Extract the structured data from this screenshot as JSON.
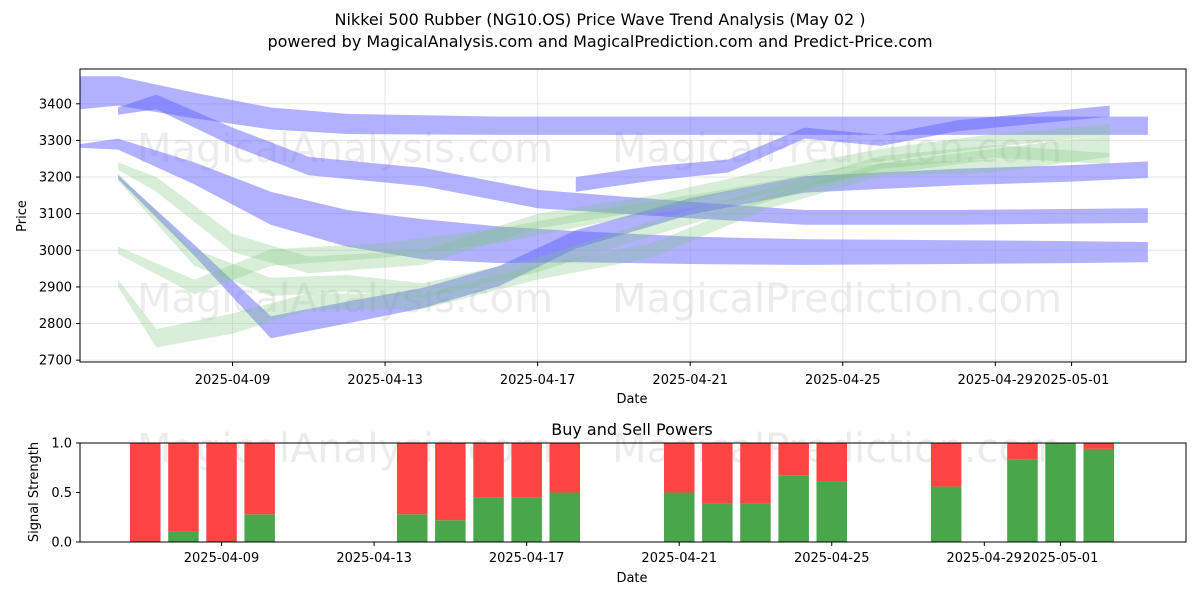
{
  "header": {
    "title": "Nikkei 500 Rubber (NG10.OS) Price Wave Trend Analysis (May 02 )",
    "subtitle": "powered by MagicalAnalysis.com and MagicalPrediction.com and Predict-Price.com"
  },
  "watermarks": [
    "MagicalAnalysis.com",
    "MagicalPrediction.com"
  ],
  "colors": {
    "blue_band": "#6464ff",
    "green_band": "#7dc87d",
    "sell": "#ff4444",
    "buy": "#4aa64a"
  },
  "chart_data": [
    {
      "type": "area",
      "title": "",
      "xlabel": "Date",
      "ylabel": "Price",
      "xlim": [
        "2025-04-05",
        "2025-05-04"
      ],
      "ylim": [
        2695,
        3495
      ],
      "x_ticks": [
        "2025-04-09",
        "2025-04-13",
        "2025-04-17",
        "2025-04-21",
        "2025-04-25",
        "2025-04-29",
        "2025-05-01"
      ],
      "y_ticks": [
        2700,
        2800,
        2900,
        3000,
        3100,
        3200,
        3300,
        3400
      ],
      "grid": true,
      "series": [
        {
          "group": "blue",
          "x": [
            "2025-04-05",
            "2025-04-06",
            "2025-04-08",
            "2025-04-10",
            "2025-04-12",
            "2025-04-16",
            "2025-04-20",
            "2025-04-24",
            "2025-04-28",
            "2025-05-03"
          ],
          "center": [
            3430,
            3435,
            3395,
            3360,
            3345,
            3340,
            3340,
            3340,
            3340,
            3340
          ],
          "width": [
            90,
            80,
            70,
            60,
            55,
            50,
            50,
            50,
            50,
            50
          ]
        },
        {
          "group": "blue",
          "x": [
            "2025-04-05",
            "2025-04-06",
            "2025-04-08",
            "2025-04-10",
            "2025-04-12",
            "2025-04-14",
            "2025-04-16",
            "2025-04-18",
            "2025-04-21",
            "2025-04-24",
            "2025-04-28",
            "2025-05-01",
            "2025-05-03"
          ],
          "center": [
            3285,
            3290,
            3210,
            3115,
            3060,
            3030,
            3015,
            3010,
            3000,
            2995,
            2995,
            2995,
            2995
          ],
          "width": [
            10,
            30,
            60,
            90,
            100,
            110,
            100,
            85,
            75,
            70,
            65,
            60,
            55
          ]
        },
        {
          "group": "blue",
          "x": [
            "2025-04-06",
            "2025-04-07",
            "2025-04-09",
            "2025-04-11",
            "2025-04-14",
            "2025-04-17",
            "2025-04-21",
            "2025-04-24",
            "2025-04-28",
            "2025-05-03"
          ],
          "center": [
            3380,
            3405,
            3310,
            3230,
            3200,
            3140,
            3110,
            3090,
            3090,
            3095
          ],
          "width": [
            20,
            40,
            50,
            50,
            50,
            50,
            45,
            40,
            40,
            40
          ]
        },
        {
          "group": "blue",
          "x": [
            "2025-04-06",
            "2025-04-08",
            "2025-04-10",
            "2025-04-12",
            "2025-04-14",
            "2025-04-16",
            "2025-04-18",
            "2025-04-21",
            "2025-04-24",
            "2025-04-28",
            "2025-05-01",
            "2025-05-03"
          ],
          "center": [
            3200,
            3000,
            2790,
            2830,
            2870,
            2930,
            3030,
            3120,
            3180,
            3200,
            3210,
            3220
          ],
          "width": [
            10,
            30,
            60,
            60,
            55,
            55,
            50,
            45,
            45,
            45,
            45,
            45
          ]
        },
        {
          "group": "blue",
          "x": [
            "2025-04-18",
            "2025-04-20",
            "2025-04-22",
            "2025-04-24",
            "2025-04-26",
            "2025-04-28",
            "2025-04-30",
            "2025-05-02"
          ],
          "center": [
            3180,
            3210,
            3230,
            3320,
            3300,
            3340,
            3360,
            3380
          ],
          "width": [
            40,
            40,
            35,
            30,
            30,
            30,
            30,
            30
          ]
        },
        {
          "group": "green",
          "x": [
            "2025-04-06",
            "2025-04-07",
            "2025-04-09",
            "2025-04-11",
            "2025-04-14",
            "2025-04-17",
            "2025-04-20",
            "2025-04-23",
            "2025-04-26",
            "2025-04-29",
            "2025-05-02"
          ],
          "center": [
            3230,
            3180,
            3020,
            2960,
            2980,
            3080,
            3130,
            3200,
            3260,
            3300,
            3330
          ],
          "width": [
            20,
            40,
            50,
            45,
            40,
            40,
            40,
            35,
            35,
            35,
            30
          ]
        },
        {
          "group": "green",
          "x": [
            "2025-04-06",
            "2025-04-08",
            "2025-04-10",
            "2025-04-12",
            "2025-04-14",
            "2025-04-17",
            "2025-04-20",
            "2025-04-23",
            "2025-04-26",
            "2025-04-29",
            "2025-05-02"
          ],
          "center": [
            3200,
            2980,
            2900,
            2910,
            2890,
            2960,
            3060,
            3150,
            3240,
            3270,
            3250
          ],
          "width": [
            20,
            45,
            50,
            45,
            40,
            40,
            40,
            35,
            35,
            35,
            30
          ]
        },
        {
          "group": "green",
          "x": [
            "2025-04-06",
            "2025-04-07",
            "2025-04-09",
            "2025-04-11",
            "2025-04-14",
            "2025-04-17",
            "2025-04-20",
            "2025-04-23",
            "2025-04-26",
            "2025-04-29",
            "2025-05-02"
          ],
          "center": [
            2910,
            2760,
            2800,
            2860,
            2860,
            2940,
            3000,
            3130,
            3220,
            3230,
            3270
          ],
          "width": [
            20,
            50,
            55,
            45,
            40,
            40,
            40,
            35,
            35,
            35,
            30
          ]
        },
        {
          "group": "green",
          "x": [
            "2025-04-06",
            "2025-04-08",
            "2025-04-10",
            "2025-04-13",
            "2025-04-16",
            "2025-04-19",
            "2025-04-22",
            "2025-04-25",
            "2025-04-28",
            "2025-05-02"
          ],
          "center": [
            3000,
            2900,
            2980,
            3000,
            3040,
            3100,
            3150,
            3210,
            3250,
            3300
          ],
          "width": [
            20,
            40,
            45,
            40,
            40,
            35,
            35,
            30,
            30,
            30
          ]
        }
      ]
    },
    {
      "type": "bar",
      "title": "Buy and Sell Powers",
      "xlabel": "Date",
      "ylabel": "Signal Strength",
      "ylim": [
        0,
        1.0
      ],
      "y_ticks": [
        0.0,
        0.5,
        1.0
      ],
      "x_ticks": [
        "2025-04-09",
        "2025-04-13",
        "2025-04-17",
        "2025-04-21",
        "2025-04-25",
        "2025-04-29",
        "2025-05-01"
      ],
      "categories": [
        "2025-04-07",
        "2025-04-08",
        "2025-04-09",
        "2025-04-10",
        "2025-04-14",
        "2025-04-15",
        "2025-04-16",
        "2025-04-17",
        "2025-04-18",
        "2025-04-21",
        "2025-04-22",
        "2025-04-23",
        "2025-04-24",
        "2025-04-25",
        "2025-04-28",
        "2025-04-30",
        "2025-05-01",
        "2025-05-02"
      ],
      "series": [
        {
          "name": "Buy",
          "values": [
            0.0,
            0.11,
            0.0,
            0.28,
            0.28,
            0.22,
            0.45,
            0.45,
            0.5,
            0.5,
            0.39,
            0.39,
            0.67,
            0.61,
            0.56,
            0.83,
            1.0,
            0.94
          ]
        },
        {
          "name": "Sell",
          "values": [
            1.0,
            0.89,
            1.0,
            0.72,
            0.72,
            0.78,
            0.55,
            0.55,
            0.5,
            0.5,
            0.61,
            0.61,
            0.33,
            0.39,
            0.44,
            0.17,
            0.0,
            0.06
          ]
        }
      ]
    }
  ]
}
